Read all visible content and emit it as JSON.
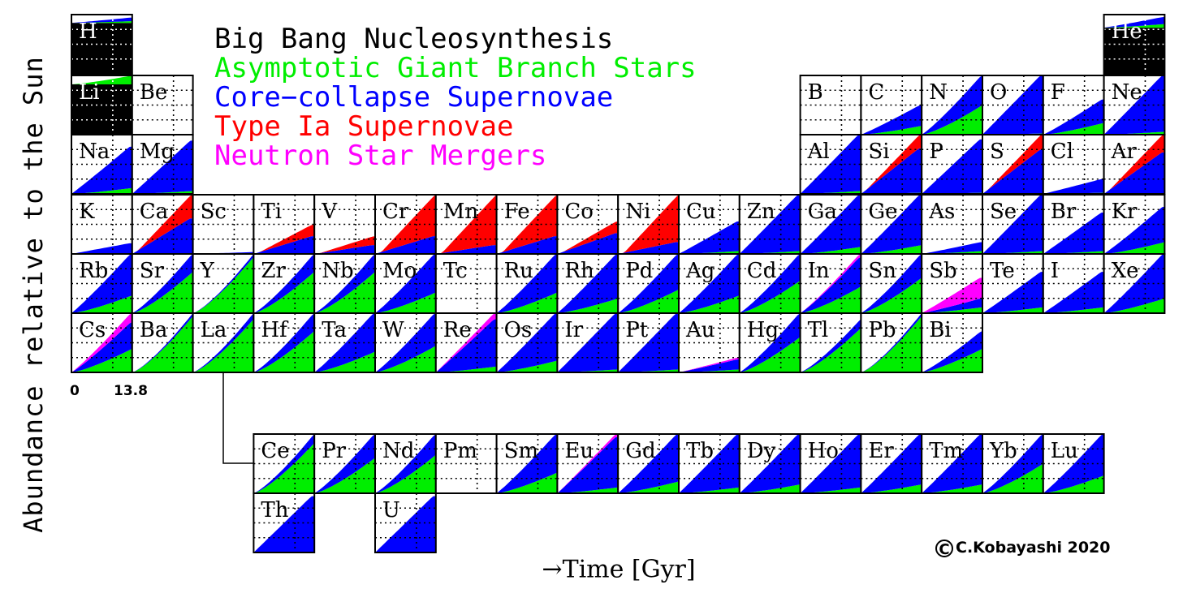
{
  "ylabel": "Abundance relative to the Sun",
  "xlabel": "→Time [Gyr]",
  "xticks": [
    "0",
    "13.8"
  ],
  "copyright": "C.Kobayashi 2020",
  "legend": [
    {
      "label": "Big Bang Nucleosynthesis",
      "color": "#000000"
    },
    {
      "label": "Asymptotic Giant Branch Stars",
      "color": "#00ee00"
    },
    {
      "label": "Core−collapse Supernovae",
      "color": "#0000ff"
    },
    {
      "label": "Type Ia Supernovae",
      "color": "#ff0000"
    },
    {
      "label": "Neutron Star Mergers",
      "color": "#ff00ff"
    }
  ],
  "chart_data": {
    "type": "area",
    "xlim": [
      0,
      13.8
    ],
    "xunit": "Gyr",
    "layers": [
      "BBN",
      "AGB",
      "CCSN",
      "SNIa",
      "NSM"
    ],
    "colors": {
      "BBN": "#000000",
      "AGB": "#00ee00",
      "CCSN": "#0000ff",
      "SNIa": "#ff0000",
      "NSM": "#ff00ff"
    },
    "elements": [
      {
        "sym": "H",
        "row": 0,
        "col": 0,
        "bbn": 0.86,
        "agb": 0.03,
        "cc": 0.06,
        "ia": 0,
        "nsm": 0
      },
      {
        "sym": "He",
        "row": 0,
        "col": 17,
        "bbn": 0.78,
        "agb": 0.06,
        "cc": 0.12,
        "ia": 0,
        "nsm": 0
      },
      {
        "sym": "Li",
        "row": 1,
        "col": 0,
        "bbn": 0.85,
        "agb": 0.15,
        "cc": 0,
        "ia": 0,
        "nsm": 0
      },
      {
        "sym": "Be",
        "row": 1,
        "col": 1,
        "bbn": 0,
        "agb": 0,
        "cc": 0,
        "ia": 0,
        "nsm": 0
      },
      {
        "sym": "B",
        "row": 1,
        "col": 12,
        "bbn": 0,
        "agb": 0,
        "cc": 0,
        "ia": 0,
        "nsm": 0
      },
      {
        "sym": "C",
        "row": 1,
        "col": 13,
        "bbn": 0,
        "agb": 0.15,
        "cc": 0.35,
        "ia": 0,
        "nsm": 0
      },
      {
        "sym": "N",
        "row": 1,
        "col": 14,
        "bbn": 0,
        "agb": 0.5,
        "cc": 0.5,
        "ia": 0,
        "nsm": 0
      },
      {
        "sym": "O",
        "row": 1,
        "col": 15,
        "bbn": 0,
        "agb": 0.02,
        "cc": 0.98,
        "ia": 0,
        "nsm": 0
      },
      {
        "sym": "F",
        "row": 1,
        "col": 16,
        "bbn": 0,
        "agb": 0.2,
        "cc": 0.4,
        "ia": 0,
        "nsm": 0
      },
      {
        "sym": "Ne",
        "row": 1,
        "col": 17,
        "bbn": 0,
        "agb": 0.05,
        "cc": 0.95,
        "ia": 0,
        "nsm": 0
      },
      {
        "sym": "Na",
        "row": 2,
        "col": 0,
        "bbn": 0,
        "agb": 0.1,
        "cc": 0.7,
        "ia": 0,
        "nsm": 0
      },
      {
        "sym": "Mg",
        "row": 2,
        "col": 1,
        "bbn": 0,
        "agb": 0.05,
        "cc": 0.85,
        "ia": 0,
        "nsm": 0
      },
      {
        "sym": "Al",
        "row": 2,
        "col": 12,
        "bbn": 0,
        "agb": 0.05,
        "cc": 0.95,
        "ia": 0,
        "nsm": 0
      },
      {
        "sym": "Si",
        "row": 2,
        "col": 13,
        "bbn": 0,
        "agb": 0.02,
        "cc": 0.75,
        "ia": 0.23,
        "nsm": 0
      },
      {
        "sym": "P",
        "row": 2,
        "col": 14,
        "bbn": 0,
        "agb": 0.02,
        "cc": 0.9,
        "ia": 0,
        "nsm": 0
      },
      {
        "sym": "S",
        "row": 2,
        "col": 15,
        "bbn": 0,
        "agb": 0,
        "cc": 0.75,
        "ia": 0.25,
        "nsm": 0
      },
      {
        "sym": "Cl",
        "row": 2,
        "col": 16,
        "bbn": 0,
        "agb": 0.02,
        "cc": 0.23,
        "ia": 0,
        "nsm": 0
      },
      {
        "sym": "Ar",
        "row": 2,
        "col": 17,
        "bbn": 0,
        "agb": 0,
        "cc": 0.7,
        "ia": 0.3,
        "nsm": 0
      },
      {
        "sym": "K",
        "row": 3,
        "col": 0,
        "bbn": 0,
        "agb": 0,
        "cc": 0.18,
        "ia": 0,
        "nsm": 0
      },
      {
        "sym": "Ca",
        "row": 3,
        "col": 1,
        "bbn": 0,
        "agb": 0,
        "cc": 0.6,
        "ia": 0.4,
        "nsm": 0
      },
      {
        "sym": "Sc",
        "row": 3,
        "col": 2,
        "bbn": 0,
        "agb": 0,
        "cc": 0.03,
        "ia": 0,
        "nsm": 0
      },
      {
        "sym": "Ti",
        "row": 3,
        "col": 3,
        "bbn": 0,
        "agb": 0,
        "cc": 0.3,
        "ia": 0.2,
        "nsm": 0
      },
      {
        "sym": "V",
        "row": 3,
        "col": 4,
        "bbn": 0,
        "agb": 0,
        "cc": 0.15,
        "ia": 0.15,
        "nsm": 0
      },
      {
        "sym": "Cr",
        "row": 3,
        "col": 5,
        "bbn": 0,
        "agb": 0,
        "cc": 0.3,
        "ia": 0.7,
        "nsm": 0
      },
      {
        "sym": "Mn",
        "row": 3,
        "col": 6,
        "bbn": 0,
        "agb": 0,
        "cc": 0.15,
        "ia": 0.85,
        "nsm": 0
      },
      {
        "sym": "Fe",
        "row": 3,
        "col": 7,
        "bbn": 0,
        "agb": 0,
        "cc": 0.3,
        "ia": 0.7,
        "nsm": 0
      },
      {
        "sym": "Co",
        "row": 3,
        "col": 8,
        "bbn": 0,
        "agb": 0,
        "cc": 0.35,
        "ia": 0.2,
        "nsm": 0
      },
      {
        "sym": "Ni",
        "row": 3,
        "col": 9,
        "bbn": 0,
        "agb": 0,
        "cc": 0.2,
        "ia": 0.8,
        "nsm": 0
      },
      {
        "sym": "Cu",
        "row": 3,
        "col": 10,
        "bbn": 0,
        "agb": 0.05,
        "cc": 0.5,
        "ia": 0,
        "nsm": 0
      },
      {
        "sym": "Zn",
        "row": 3,
        "col": 11,
        "bbn": 0,
        "agb": 0.05,
        "cc": 0.95,
        "ia": 0,
        "nsm": 0
      },
      {
        "sym": "Ga",
        "row": 3,
        "col": 12,
        "bbn": 0,
        "agb": 0.12,
        "cc": 0.88,
        "ia": 0,
        "nsm": 0
      },
      {
        "sym": "Ge",
        "row": 3,
        "col": 13,
        "bbn": 0,
        "agb": 0.15,
        "cc": 0.85,
        "ia": 0,
        "nsm": 0
      },
      {
        "sym": "As",
        "row": 3,
        "col": 14,
        "bbn": 0,
        "agb": 0.05,
        "cc": 0.15,
        "ia": 0,
        "nsm": 0
      },
      {
        "sym": "Se",
        "row": 3,
        "col": 15,
        "bbn": 0,
        "agb": 0.05,
        "cc": 0.95,
        "ia": 0,
        "nsm": 0
      },
      {
        "sym": "Br",
        "row": 3,
        "col": 16,
        "bbn": 0,
        "agb": 0.05,
        "cc": 0.65,
        "ia": 0,
        "nsm": 0
      },
      {
        "sym": "Kr",
        "row": 3,
        "col": 17,
        "bbn": 0,
        "agb": 0.2,
        "cc": 0.6,
        "ia": 0,
        "nsm": 0
      },
      {
        "sym": "Rb",
        "row": 4,
        "col": 0,
        "bbn": 0,
        "agb": 0.3,
        "cc": 0.7,
        "ia": 0,
        "nsm": 0
      },
      {
        "sym": "Sr",
        "row": 4,
        "col": 1,
        "bbn": 0,
        "agb": 0.7,
        "cc": 0.3,
        "ia": 0,
        "nsm": 0
      },
      {
        "sym": "Y",
        "row": 4,
        "col": 2,
        "bbn": 0,
        "agb": 0.95,
        "cc": 0.05,
        "ia": 0,
        "nsm": 0
      },
      {
        "sym": "Zr",
        "row": 4,
        "col": 3,
        "bbn": 0,
        "agb": 0.7,
        "cc": 0.3,
        "ia": 0,
        "nsm": 0
      },
      {
        "sym": "Nb",
        "row": 4,
        "col": 4,
        "bbn": 0,
        "agb": 0.7,
        "cc": 0.3,
        "ia": 0,
        "nsm": 0
      },
      {
        "sym": "Mo",
        "row": 4,
        "col": 5,
        "bbn": 0,
        "agb": 0.35,
        "cc": 0.65,
        "ia": 0,
        "nsm": 0
      },
      {
        "sym": "Tc",
        "row": 4,
        "col": 6,
        "bbn": 0,
        "agb": 0,
        "cc": 0,
        "ia": 0,
        "nsm": 0
      },
      {
        "sym": "Ru",
        "row": 4,
        "col": 7,
        "bbn": 0,
        "agb": 0.35,
        "cc": 0.65,
        "ia": 0,
        "nsm": 0
      },
      {
        "sym": "Rh",
        "row": 4,
        "col": 8,
        "bbn": 0,
        "agb": 0.25,
        "cc": 0.75,
        "ia": 0,
        "nsm": 0
      },
      {
        "sym": "Pd",
        "row": 4,
        "col": 9,
        "bbn": 0,
        "agb": 0.4,
        "cc": 0.6,
        "ia": 0,
        "nsm": 0
      },
      {
        "sym": "Ag",
        "row": 4,
        "col": 10,
        "bbn": 0,
        "agb": 0.3,
        "cc": 0.7,
        "ia": 0,
        "nsm": 0
      },
      {
        "sym": "Cd",
        "row": 4,
        "col": 11,
        "bbn": 0,
        "agb": 0.55,
        "cc": 0.45,
        "ia": 0,
        "nsm": 0
      },
      {
        "sym": "In",
        "row": 4,
        "col": 12,
        "bbn": 0,
        "agb": 0.45,
        "cc": 0.5,
        "ia": 0,
        "nsm": 0.05
      },
      {
        "sym": "Sn",
        "row": 4,
        "col": 13,
        "bbn": 0,
        "agb": 0.6,
        "cc": 0.4,
        "ia": 0,
        "nsm": 0
      },
      {
        "sym": "Sb",
        "row": 4,
        "col": 14,
        "bbn": 0,
        "agb": 0.1,
        "cc": 0.15,
        "ia": 0,
        "nsm": 0.35
      },
      {
        "sym": "Te",
        "row": 4,
        "col": 15,
        "bbn": 0,
        "agb": 0.1,
        "cc": 0.6,
        "ia": 0,
        "nsm": 0
      },
      {
        "sym": "I",
        "row": 4,
        "col": 16,
        "bbn": 0,
        "agb": 0.1,
        "cc": 0.6,
        "ia": 0,
        "nsm": 0
      },
      {
        "sym": "Xe",
        "row": 4,
        "col": 17,
        "bbn": 0,
        "agb": 0.25,
        "cc": 0.75,
        "ia": 0,
        "nsm": 0
      },
      {
        "sym": "Cs",
        "row": 5,
        "col": 0,
        "bbn": 0,
        "agb": 0.4,
        "cc": 0.45,
        "ia": 0,
        "nsm": 0.15
      },
      {
        "sym": "Ba",
        "row": 5,
        "col": 1,
        "bbn": 0,
        "agb": 0.95,
        "cc": 0.05,
        "ia": 0,
        "nsm": 0
      },
      {
        "sym": "La",
        "row": 5,
        "col": 2,
        "bbn": 0,
        "agb": 0.9,
        "cc": 0.1,
        "ia": 0,
        "nsm": 0
      },
      {
        "sym": "Hf",
        "row": 5,
        "col": 3,
        "bbn": 0,
        "agb": 0.7,
        "cc": 0.3,
        "ia": 0,
        "nsm": 0
      },
      {
        "sym": "Ta",
        "row": 5,
        "col": 4,
        "bbn": 0,
        "agb": 0.35,
        "cc": 0.65,
        "ia": 0,
        "nsm": 0
      },
      {
        "sym": "W",
        "row": 5,
        "col": 5,
        "bbn": 0,
        "agb": 0.45,
        "cc": 0.55,
        "ia": 0,
        "nsm": 0
      },
      {
        "sym": "Re",
        "row": 5,
        "col": 6,
        "bbn": 0,
        "agb": 0.1,
        "cc": 0.8,
        "ia": 0,
        "nsm": 0.1
      },
      {
        "sym": "Os",
        "row": 5,
        "col": 7,
        "bbn": 0,
        "agb": 0.2,
        "cc": 0.8,
        "ia": 0,
        "nsm": 0
      },
      {
        "sym": "Ir",
        "row": 5,
        "col": 8,
        "bbn": 0,
        "agb": 0.05,
        "cc": 0.95,
        "ia": 0,
        "nsm": 0
      },
      {
        "sym": "Pt",
        "row": 5,
        "col": 9,
        "bbn": 0,
        "agb": 0.05,
        "cc": 0.95,
        "ia": 0,
        "nsm": 0
      },
      {
        "sym": "Au",
        "row": 5,
        "col": 10,
        "bbn": 0,
        "agb": 0.05,
        "cc": 0.17,
        "ia": 0,
        "nsm": 0.03
      },
      {
        "sym": "Hg",
        "row": 5,
        "col": 11,
        "bbn": 0,
        "agb": 0.6,
        "cc": 0.4,
        "ia": 0,
        "nsm": 0
      },
      {
        "sym": "Tl",
        "row": 5,
        "col": 12,
        "bbn": 0,
        "agb": 0.75,
        "cc": 0.15,
        "ia": 0,
        "nsm": 0
      },
      {
        "sym": "Pb",
        "row": 5,
        "col": 13,
        "bbn": 0,
        "agb": 0.95,
        "cc": 0.05,
        "ia": 0,
        "nsm": 0
      },
      {
        "sym": "Bi",
        "row": 5,
        "col": 14,
        "bbn": 0,
        "agb": 0.4,
        "cc": 0.3,
        "ia": 0,
        "nsm": 0
      },
      {
        "sym": "Ce",
        "row": 7,
        "col": 3,
        "bbn": 0,
        "agb": 0.85,
        "cc": 0.15,
        "ia": 0,
        "nsm": 0
      },
      {
        "sym": "Pr",
        "row": 7,
        "col": 4,
        "bbn": 0,
        "agb": 0.6,
        "cc": 0.4,
        "ia": 0,
        "nsm": 0
      },
      {
        "sym": "Nd",
        "row": 7,
        "col": 5,
        "bbn": 0,
        "agb": 0.65,
        "cc": 0.35,
        "ia": 0,
        "nsm": 0
      },
      {
        "sym": "Pm",
        "row": 7,
        "col": 6,
        "bbn": 0,
        "agb": 0,
        "cc": 0,
        "ia": 0,
        "nsm": 0
      },
      {
        "sym": "Sm",
        "row": 7,
        "col": 7,
        "bbn": 0,
        "agb": 0.35,
        "cc": 0.65,
        "ia": 0,
        "nsm": 0
      },
      {
        "sym": "Eu",
        "row": 7,
        "col": 8,
        "bbn": 0,
        "agb": 0.1,
        "cc": 0.85,
        "ia": 0,
        "nsm": 0.05
      },
      {
        "sym": "Gd",
        "row": 7,
        "col": 9,
        "bbn": 0,
        "agb": 0.2,
        "cc": 0.8,
        "ia": 0,
        "nsm": 0
      },
      {
        "sym": "Tb",
        "row": 7,
        "col": 10,
        "bbn": 0,
        "agb": 0.1,
        "cc": 0.9,
        "ia": 0,
        "nsm": 0
      },
      {
        "sym": "Dy",
        "row": 7,
        "col": 11,
        "bbn": 0,
        "agb": 0.15,
        "cc": 0.85,
        "ia": 0,
        "nsm": 0
      },
      {
        "sym": "Ho",
        "row": 7,
        "col": 12,
        "bbn": 0,
        "agb": 0.1,
        "cc": 0.9,
        "ia": 0,
        "nsm": 0
      },
      {
        "sym": "Er",
        "row": 7,
        "col": 13,
        "bbn": 0,
        "agb": 0.15,
        "cc": 0.85,
        "ia": 0,
        "nsm": 0
      },
      {
        "sym": "Tm",
        "row": 7,
        "col": 14,
        "bbn": 0,
        "agb": 0.15,
        "cc": 0.85,
        "ia": 0,
        "nsm": 0
      },
      {
        "sym": "Yb",
        "row": 7,
        "col": 15,
        "bbn": 0,
        "agb": 0.5,
        "cc": 0.5,
        "ia": 0,
        "nsm": 0
      },
      {
        "sym": "Lu",
        "row": 7,
        "col": 16,
        "bbn": 0,
        "agb": 0.3,
        "cc": 0.7,
        "ia": 0,
        "nsm": 0
      },
      {
        "sym": "Th",
        "row": 8,
        "col": 3,
        "bbn": 0,
        "agb": 0,
        "cc": 0.95,
        "ia": 0,
        "nsm": 0
      },
      {
        "sym": "U",
        "row": 8,
        "col": 5,
        "bbn": 0,
        "agb": 0,
        "cc": 0.95,
        "ia": 0,
        "nsm": 0
      }
    ]
  }
}
